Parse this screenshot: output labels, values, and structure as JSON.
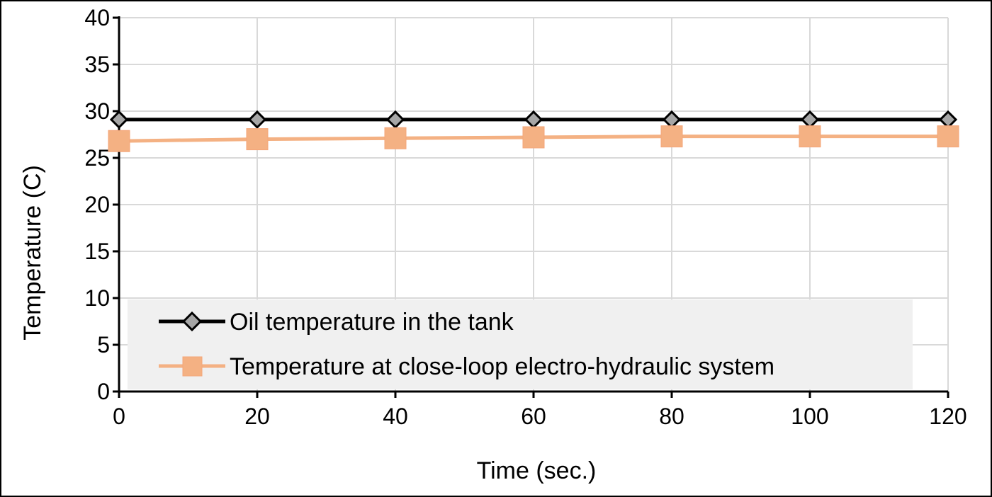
{
  "chart_data": {
    "type": "line",
    "title": "",
    "xlabel": "Time (sec.)",
    "ylabel": "Temperature (C)",
    "x": [
      0,
      20,
      40,
      60,
      80,
      100,
      120
    ],
    "xlim": [
      0,
      120
    ],
    "ylim": [
      0,
      40
    ],
    "x_ticks": [
      0,
      20,
      40,
      60,
      80,
      100,
      120
    ],
    "y_ticks": [
      0,
      5,
      10,
      15,
      20,
      25,
      30,
      35,
      40
    ],
    "grid": true,
    "legend_position": "bottom-center",
    "series": [
      {
        "name": "Oil temperature in the tank",
        "values": [
          29.1,
          29.1,
          29.1,
          29.1,
          29.1,
          29.1,
          29.1
        ],
        "color": "#000000",
        "marker": "diamond",
        "marker_color": "#a6a6a6"
      },
      {
        "name": "Temperature at close-loop electro-hydraulic system",
        "values": [
          26.8,
          27.0,
          27.1,
          27.2,
          27.3,
          27.3,
          27.3
        ],
        "color": "#f4b183",
        "marker": "square",
        "marker_color": "#f4b183"
      }
    ]
  },
  "colors": {
    "grid": "#d9d9d9",
    "axis": "#000000",
    "legend_background": "#f0f0f0"
  }
}
